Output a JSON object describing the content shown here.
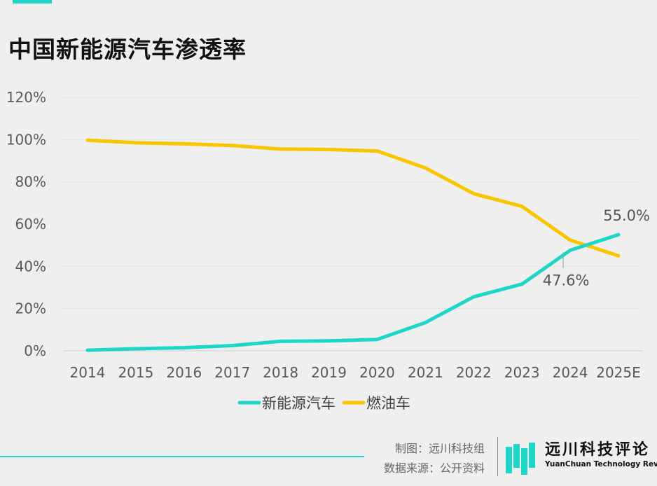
{
  "title": "中国新能源汽车渗透率",
  "chart_data": {
    "type": "line",
    "title": "中国新能源汽车渗透率",
    "categories": [
      "2014",
      "2015",
      "2016",
      "2017",
      "2018",
      "2019",
      "2020",
      "2021",
      "2022",
      "2023",
      "2024",
      "2025E"
    ],
    "y_ticks": [
      "0%",
      "20%",
      "40%",
      "60%",
      "80%",
      "100%",
      "120%"
    ],
    "ylim": [
      0,
      120
    ],
    "grid": true,
    "legend_position": "bottom-center",
    "series": [
      {
        "name": "新能源汽车",
        "color": "#1ed6c8",
        "values": [
          0.3,
          1.0,
          1.5,
          2.5,
          4.5,
          4.7,
          5.4,
          13.4,
          25.6,
          31.6,
          47.6,
          55.0
        ]
      },
      {
        "name": "燃油车",
        "color": "#f7c600",
        "values": [
          99.7,
          98.5,
          98.0,
          97.2,
          95.5,
          95.3,
          94.6,
          86.6,
          74.4,
          68.4,
          52.4,
          45.0
        ]
      }
    ],
    "annotations": [
      {
        "text": "55.0%",
        "series": 0,
        "index": 11
      },
      {
        "text": "47.6%",
        "series": 0,
        "index": 10
      }
    ]
  },
  "footer": {
    "credit": "制图：远川科技组",
    "source": "数据来源：公开资料",
    "brand_cn": "远川科技评论",
    "brand_en": "YuanChuan Technology Review"
  }
}
